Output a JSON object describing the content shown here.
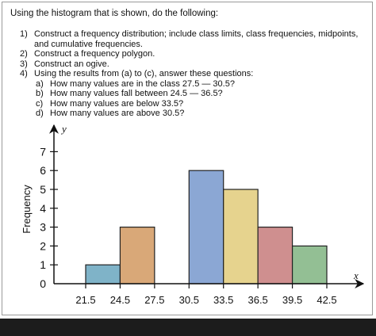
{
  "intro": "Using the histogram that is shown, do the following:",
  "tasks": [
    {
      "num": "1)",
      "text": "Construct a frequency distribution; include class limits, class frequencies, midpoints, and cumulative frequencies."
    },
    {
      "num": "2)",
      "text": "Construct a frequency polygon."
    },
    {
      "num": "3)",
      "text": "Construct an ogive."
    },
    {
      "num": "4)",
      "text": "Using the results from (a) to (c), answer these questions:"
    }
  ],
  "questions": [
    {
      "letter": "a)",
      "text": "How many values are in the class 27.5 — 30.5?"
    },
    {
      "letter": "b)",
      "text": "How many values fall between 24.5 — 36.5?"
    },
    {
      "letter": "c)",
      "text": "How many values are below 33.5?"
    },
    {
      "letter": "d)",
      "text": "How many values are above 30.5?"
    }
  ],
  "chart_data": {
    "type": "bar",
    "ylabel": "Frequency",
    "x_axis_letter": "x",
    "y_axis_letter": "y",
    "x_ticks": [
      21.5,
      24.5,
      27.5,
      30.5,
      33.5,
      36.5,
      39.5,
      42.5
    ],
    "x_tick_labels": [
      "21.5",
      "24.5",
      "27.5",
      "30.5",
      "33.5",
      "36.5",
      "39.5",
      "42.5"
    ],
    "y_ticks": [
      0,
      1,
      2,
      3,
      4,
      5,
      6,
      7
    ],
    "y_tick_labels": [
      "0",
      "1",
      "2",
      "3",
      "4",
      "5",
      "6",
      "7"
    ],
    "ylim": [
      0,
      8
    ],
    "xlim": [
      21.5,
      42.5
    ],
    "bins": [
      {
        "start": 21.5,
        "end": 24.5,
        "value": 1,
        "color": "#7fb3c8"
      },
      {
        "start": 24.5,
        "end": 27.5,
        "value": 3,
        "color": "#d9a878"
      },
      {
        "start": 27.5,
        "end": 30.5,
        "value": 0,
        "color": "#ffffff"
      },
      {
        "start": 30.5,
        "end": 33.5,
        "value": 6,
        "color": "#8ba7d4"
      },
      {
        "start": 33.5,
        "end": 36.5,
        "value": 5,
        "color": "#e6d38e"
      },
      {
        "start": 36.5,
        "end": 39.5,
        "value": 3,
        "color": "#cf8f8f"
      },
      {
        "start": 39.5,
        "end": 42.5,
        "value": 2,
        "color": "#93bf94"
      }
    ]
  }
}
